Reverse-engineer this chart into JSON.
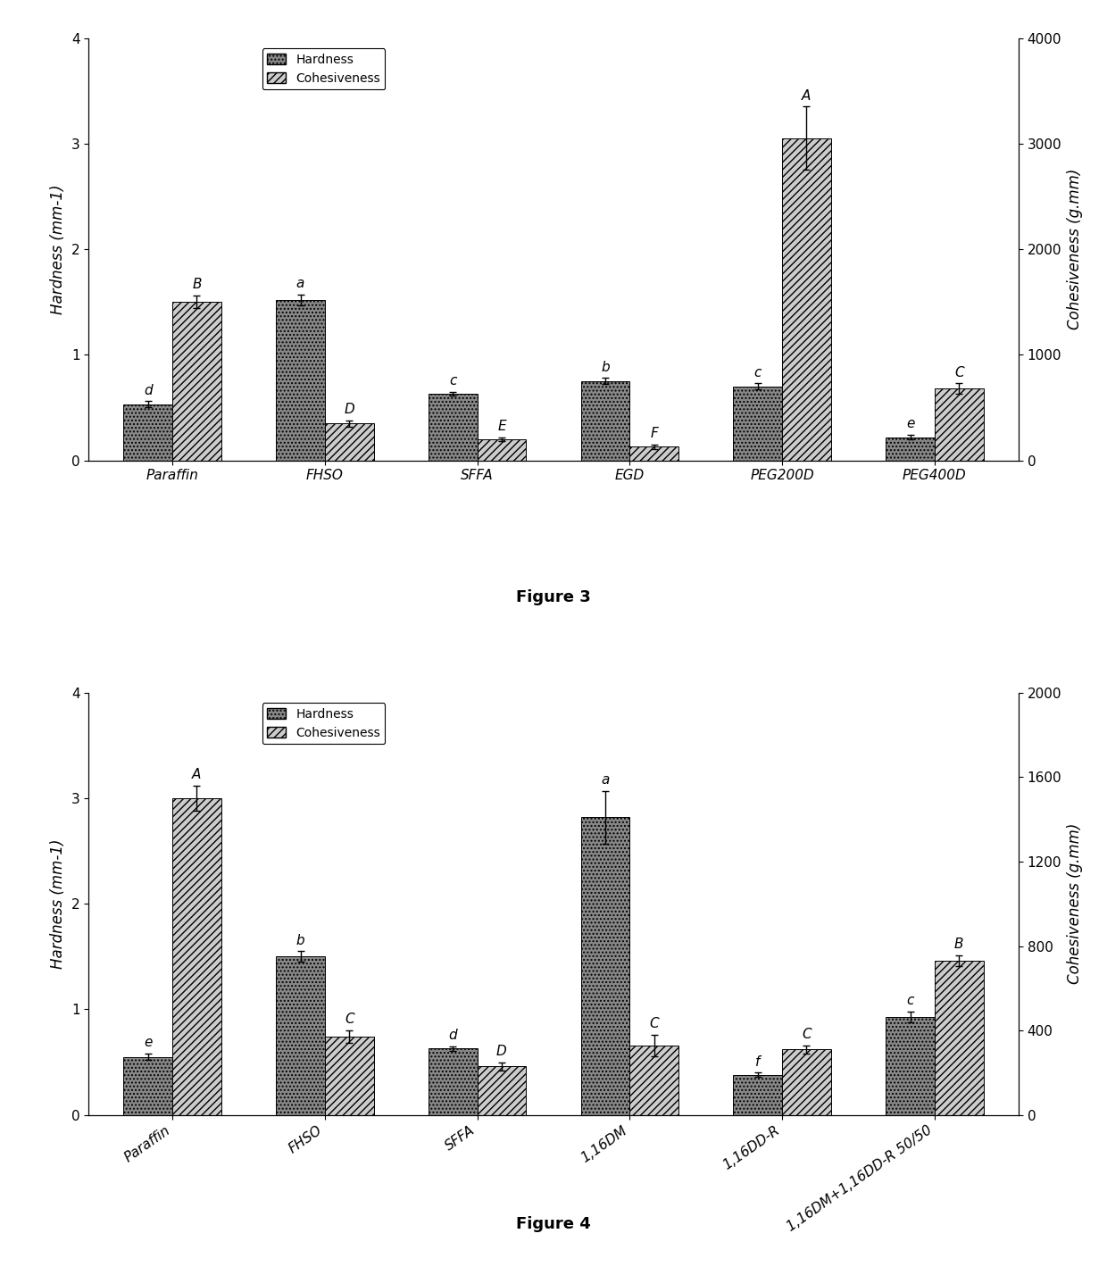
{
  "fig3": {
    "categories": [
      "Paraffin",
      "FHSO",
      "SFFA",
      "EGD",
      "PEG200D",
      "PEG400D"
    ],
    "hardness_values": [
      0.53,
      1.52,
      0.63,
      0.75,
      0.7,
      0.22
    ],
    "hardness_errors": [
      0.03,
      0.05,
      0.02,
      0.03,
      0.03,
      0.02
    ],
    "cohesiveness_values": [
      1500,
      350,
      200,
      130,
      3050,
      680
    ],
    "cohesiveness_errors": [
      60,
      30,
      20,
      20,
      300,
      50
    ],
    "hardness_labels": [
      "d",
      "a",
      "c",
      "b",
      "c",
      "e"
    ],
    "cohesiveness_labels": [
      "B",
      "D",
      "E",
      "F",
      "A",
      "C"
    ],
    "hardness_ylim": [
      0,
      4
    ],
    "cohesiveness_ylim": [
      0,
      4000
    ],
    "hardness_yticks": [
      0,
      1,
      2,
      3,
      4
    ],
    "cohesiveness_yticks": [
      0,
      1000,
      2000,
      3000,
      4000
    ],
    "ylabel_left": "Hardness (mm-1)",
    "ylabel_right": "Cohesiveness (g.mm)",
    "figure_label": "Figure 3"
  },
  "fig4": {
    "categories": [
      "Paraffin",
      "FHSO",
      "SFFA",
      "1,16DM",
      "1,16DD-R",
      "1,16DM+1,16DD-R 50/50"
    ],
    "hardness_values": [
      0.55,
      1.5,
      0.63,
      2.82,
      0.38,
      0.93
    ],
    "hardness_errors": [
      0.03,
      0.05,
      0.02,
      0.25,
      0.02,
      0.05
    ],
    "cohesiveness_values": [
      1500,
      370,
      230,
      330,
      310,
      730
    ],
    "cohesiveness_errors": [
      60,
      30,
      20,
      50,
      20,
      25
    ],
    "hardness_labels": [
      "e",
      "b",
      "d",
      "a",
      "f",
      "c"
    ],
    "cohesiveness_labels": [
      "A",
      "C",
      "D",
      "C",
      "C",
      "B"
    ],
    "hardness_ylim": [
      0,
      4
    ],
    "cohesiveness_ylim": [
      0,
      2000
    ],
    "hardness_yticks": [
      0,
      1,
      2,
      3,
      4
    ],
    "cohesiveness_yticks": [
      0,
      400,
      800,
      1200,
      1600,
      2000
    ],
    "ylabel_left": "Hardness (mm-1)",
    "ylabel_right": "Cohesiveness (g.mm)",
    "figure_label": "Figure 4"
  },
  "bar_color_hardness": "#888888",
  "bar_color_cohesiveness": "#cccccc",
  "hatch_hardness": "....",
  "hatch_cohesiveness": "////",
  "bar_width": 0.32,
  "legend_fontsize": 10,
  "tick_fontsize": 11,
  "axis_label_fontsize": 12,
  "figure_label_fontsize": 13,
  "annotation_fontsize": 11
}
